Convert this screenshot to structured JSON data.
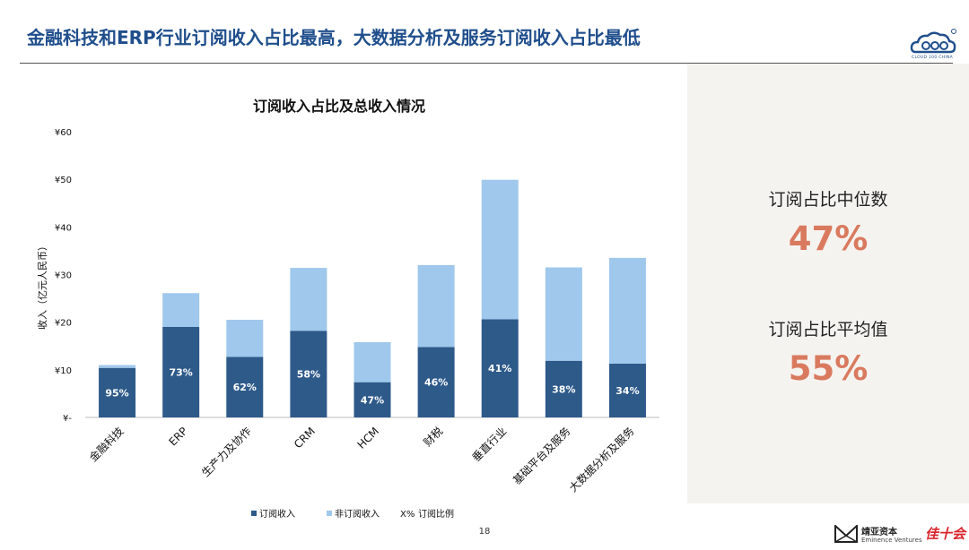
{
  "header": {
    "title": "金融科技和ERP行业订阅收入占比最高，大数据分析及服务订阅收入占比最低",
    "logo_text": "CLOUD 100 CHINA"
  },
  "chart_data": {
    "type": "bar",
    "stacked": true,
    "title": "订阅收入占比及总收入情况",
    "xlabel": "",
    "ylabel": "收入（亿元人民币）",
    "ylim": [
      0,
      60
    ],
    "yticks": [
      0,
      10,
      20,
      30,
      40,
      50,
      60
    ],
    "ytick_labels": [
      "¥-",
      "¥10",
      "¥20",
      "¥30",
      "¥40",
      "¥50",
      "¥60"
    ],
    "categories": [
      "金融科技",
      "ERP",
      "生产力及协作",
      "CRM",
      "HCM",
      "财税",
      "垂直行业",
      "基础平台及服务",
      "大数据分析及服务"
    ],
    "series": [
      {
        "name": "订阅收入",
        "color": "#2e5a8a",
        "values": [
          10.4,
          19.0,
          12.7,
          18.2,
          7.4,
          14.8,
          20.6,
          11.9,
          11.3
        ]
      },
      {
        "name": "非订阅收入",
        "color": "#9fc8ec",
        "values": [
          0.6,
          7.1,
          7.8,
          13.2,
          8.4,
          17.2,
          29.3,
          19.6,
          22.2
        ]
      }
    ],
    "ratio_labels": [
      "95%",
      "73%",
      "62%",
      "58%",
      "47%",
      "46%",
      "41%",
      "38%",
      "34%"
    ],
    "legend": {
      "placement": "bottom",
      "ratio_marker": "X%",
      "ratio_name": "订阅比例"
    },
    "grid": false
  },
  "stats": {
    "median_label": "订阅占比中位数",
    "median_value": "47%",
    "mean_label": "订阅占比平均值",
    "mean_value": "55%"
  },
  "footer": {
    "page_number": "18",
    "brand_cn": "靖亚资本",
    "brand_en": "Eminence Ventures",
    "partner": "佳十会"
  }
}
